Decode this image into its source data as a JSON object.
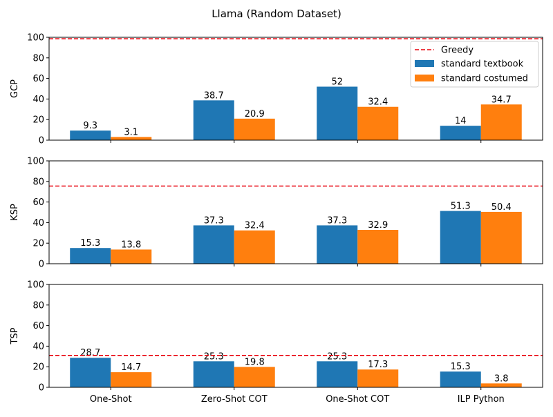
{
  "chart_data": {
    "type": "bar",
    "suptitle": "Llama (Random Dataset)",
    "categories": [
      "One-Shot",
      "Zero-Shot COT",
      "One-Shot COT",
      "ILP Python"
    ],
    "ylim": [
      0,
      100
    ],
    "yticks": [
      0,
      20,
      40,
      60,
      80,
      100
    ],
    "legend_placement": "top-right",
    "reference_line": {
      "name": "Greedy",
      "style": "dashed",
      "color": "#e8000b"
    },
    "series_styles": [
      {
        "name": "standard textbook",
        "color": "#1f77b4"
      },
      {
        "name": "standard costumed",
        "color": "#ff7f0e"
      }
    ],
    "panels": [
      {
        "ylabel": "GCP",
        "greedy": 98.5,
        "show_legend": true,
        "series": [
          {
            "name": "standard textbook",
            "values": [
              9.3,
              38.7,
              52,
              14
            ]
          },
          {
            "name": "standard costumed",
            "values": [
              3.1,
              20.9,
              32.4,
              34.7
            ]
          }
        ]
      },
      {
        "ylabel": "KSP",
        "greedy": 75.5,
        "show_legend": false,
        "series": [
          {
            "name": "standard textbook",
            "values": [
              15.3,
              37.3,
              37.3,
              51.3
            ]
          },
          {
            "name": "standard costumed",
            "values": [
              13.8,
              32.4,
              32.9,
              50.4
            ]
          }
        ]
      },
      {
        "ylabel": "TSP",
        "greedy": 31,
        "show_legend": false,
        "series": [
          {
            "name": "standard textbook",
            "values": [
              28.7,
              25.3,
              25.3,
              15.3
            ]
          },
          {
            "name": "standard costumed",
            "values": [
              14.7,
              19.8,
              17.3,
              3.8
            ]
          }
        ]
      }
    ]
  }
}
